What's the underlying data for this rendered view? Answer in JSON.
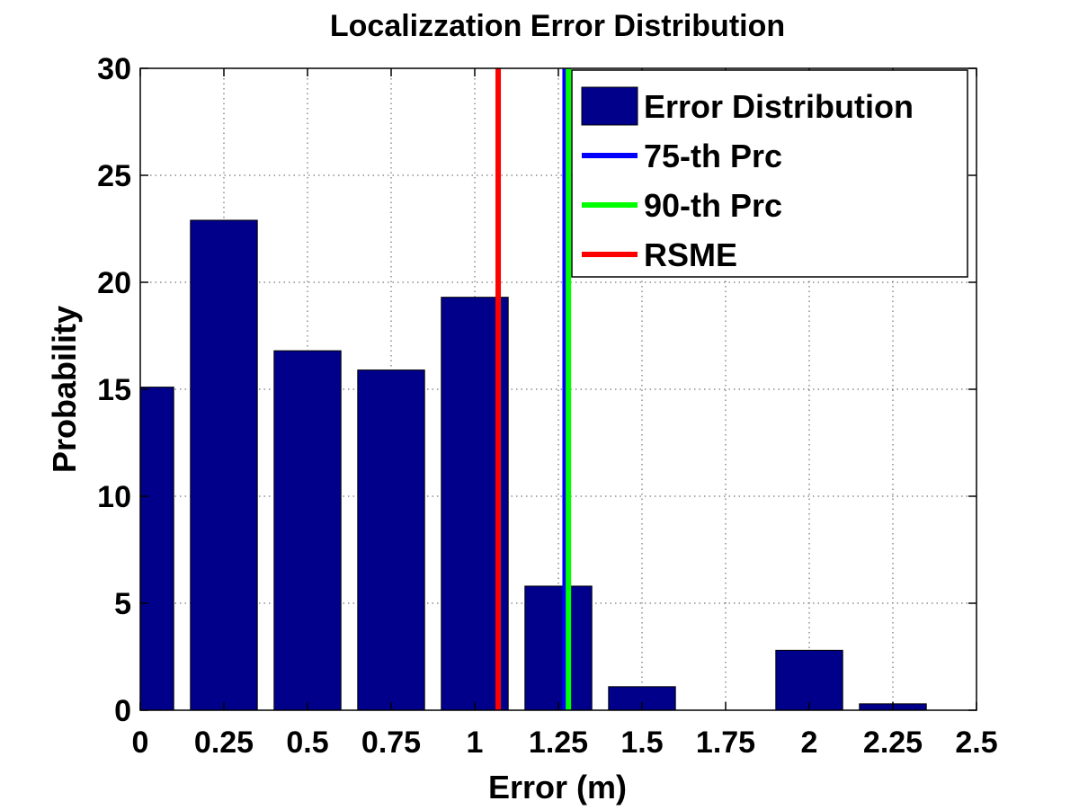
{
  "chart_data": {
    "type": "bar",
    "title": "Localizzation Error Distribution",
    "xlabel": "Error (m)",
    "ylabel": "Probability",
    "xlim": [
      0,
      2.5
    ],
    "ylim": [
      0,
      30
    ],
    "xticks": [
      0,
      0.25,
      0.5,
      0.75,
      1,
      1.25,
      1.5,
      1.75,
      2,
      2.25,
      2.5
    ],
    "xtick_labels": [
      "0",
      "0.25",
      "0.5",
      "0.75",
      "1",
      "1.25",
      "1.5",
      "1.75",
      "2",
      "2.25",
      "2.5"
    ],
    "yticks": [
      0,
      5,
      10,
      15,
      20,
      25,
      30
    ],
    "ytick_labels": [
      "0",
      "5",
      "10",
      "15",
      "20",
      "25",
      "30"
    ],
    "grid": true,
    "legend_position": "top-right",
    "bar_width": 0.2,
    "bars": {
      "name": "Error Distribution",
      "color": "#00008b",
      "x": [
        0,
        0.25,
        0.5,
        0.75,
        1,
        1.25,
        1.5,
        1.75,
        2,
        2.25
      ],
      "values": [
        15.1,
        22.9,
        16.8,
        15.9,
        19.3,
        5.8,
        1.1,
        0,
        2.8,
        0.3
      ]
    },
    "lines": [
      {
        "name": "75-th Prc",
        "color": "#0000ff",
        "x": 1.27
      },
      {
        "name": "90-th Prc",
        "color": "#00ff00",
        "x": 1.28
      },
      {
        "name": "RSME",
        "color": "#ff0000",
        "x": 1.07
      }
    ]
  }
}
